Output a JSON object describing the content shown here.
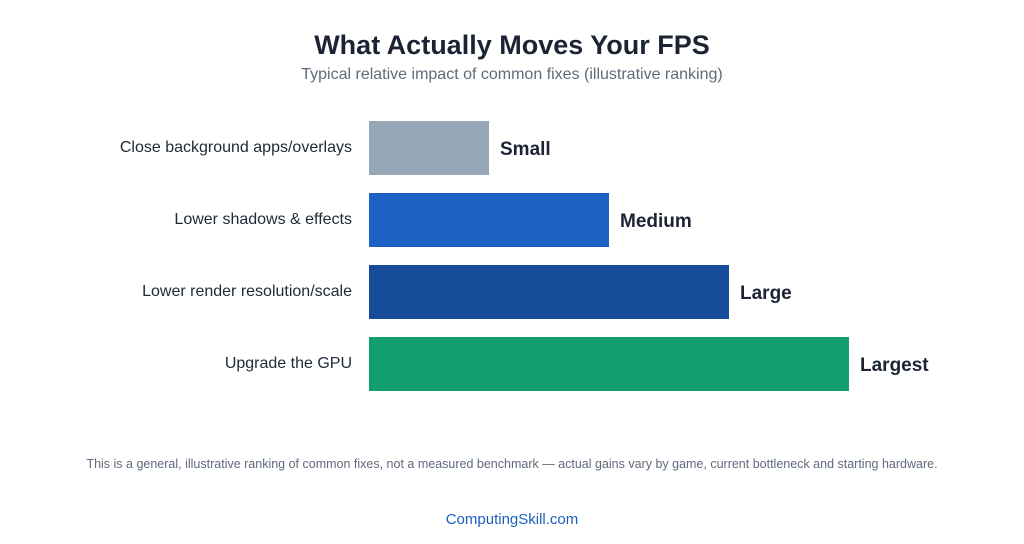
{
  "chart_data": {
    "type": "bar",
    "orientation": "horizontal",
    "title": "What Actually Moves Your FPS",
    "subtitle": "Typical relative impact of common fixes (illustrative ranking)",
    "categories": [
      "Close background apps/overlays",
      "Lower shadows & effects",
      "Lower render resolution/scale",
      "Upgrade the GPU"
    ],
    "values": [
      1,
      2,
      3,
      4
    ],
    "value_labels": [
      "Small",
      "Medium",
      "Large",
      "Largest"
    ],
    "colors": [
      "#95a6b7",
      "#1b62c4",
      "#164c9a",
      "#129e6f"
    ],
    "xlim": [
      0,
      4
    ],
    "grid": false,
    "legend": "none"
  },
  "footnote": "This is a general, illustrative ranking of common fixes, not a measured benchmark — actual gains vary by game, current bottleneck and starting hardware.",
  "brand": "ComputingSkill.com"
}
